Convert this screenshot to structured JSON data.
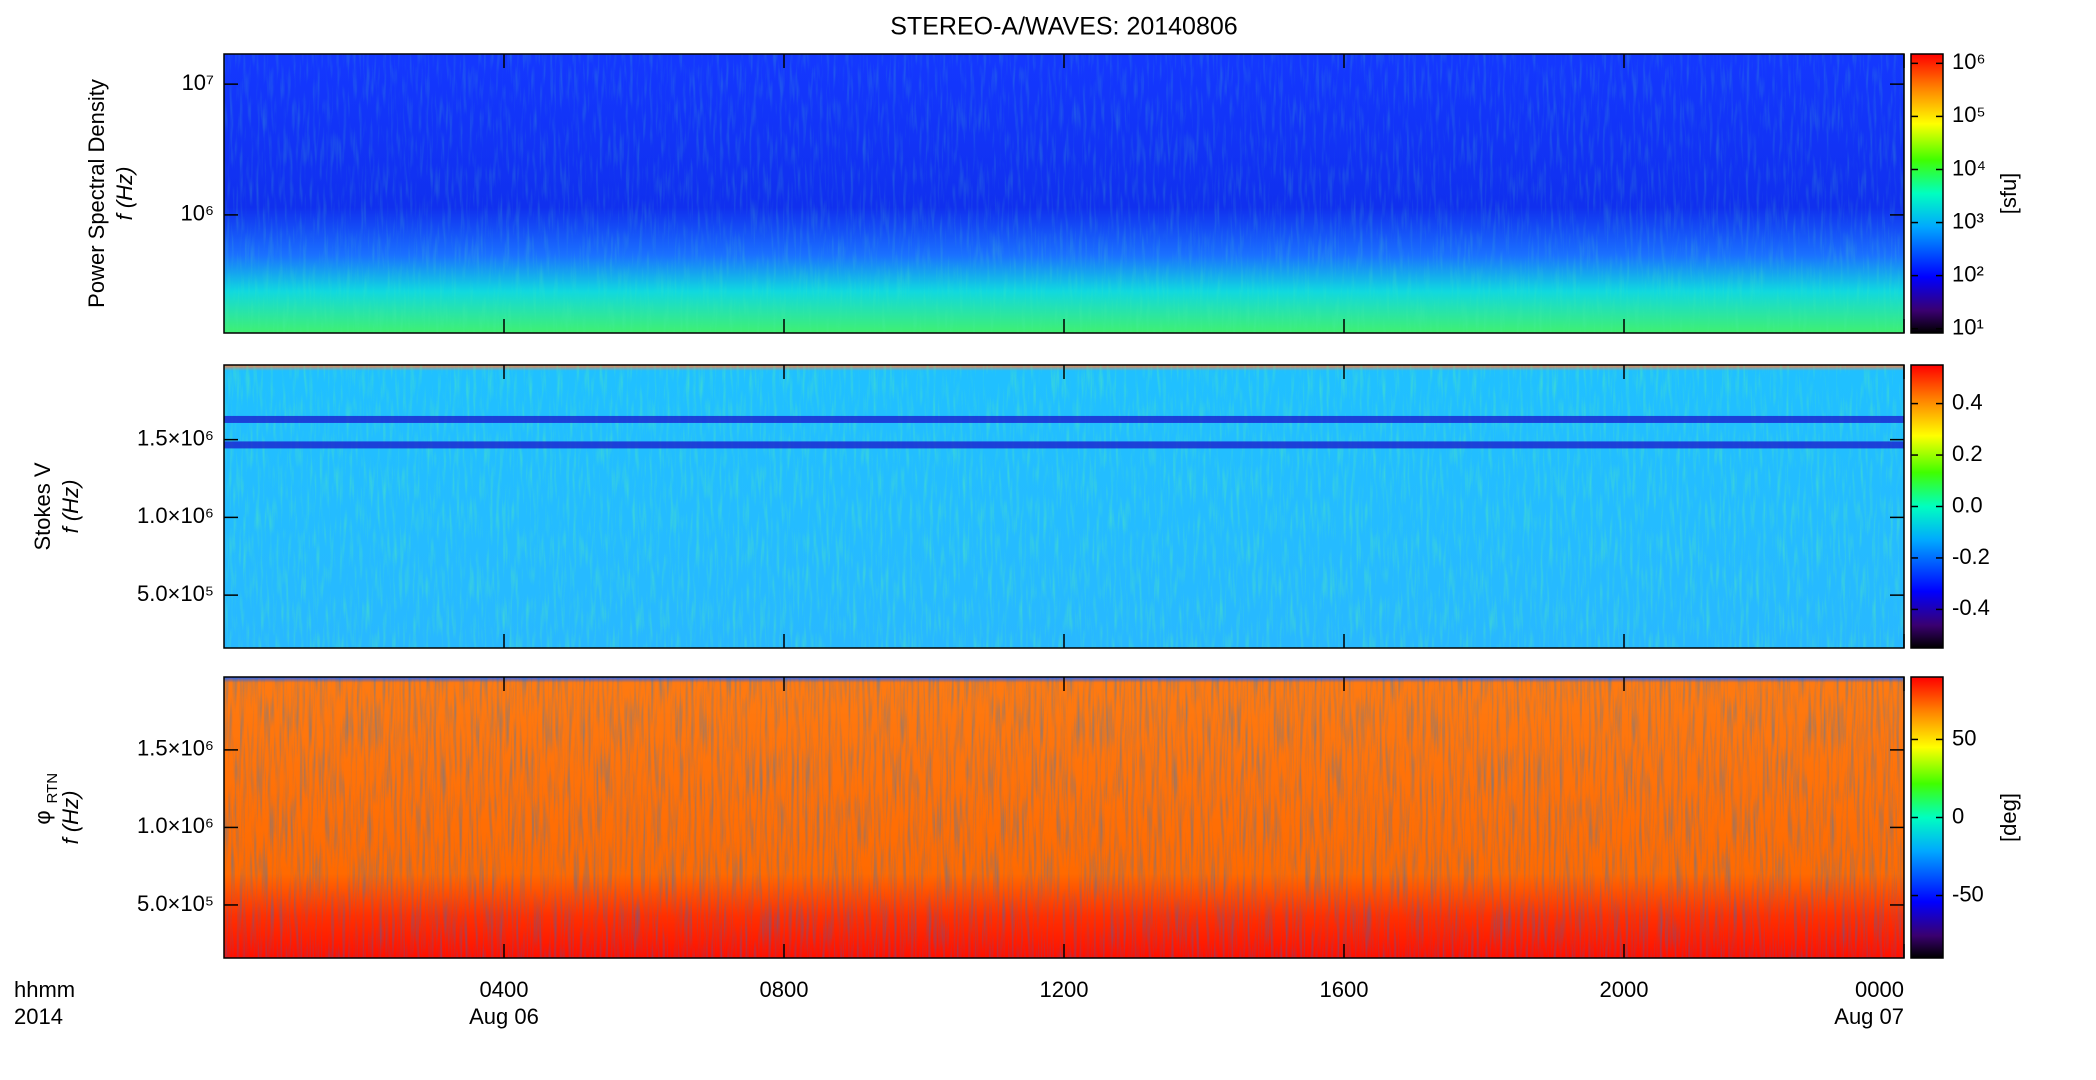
{
  "chart_data": [
    {
      "type": "spectrogram",
      "title": "STEREO-A/WAVES: 20140806",
      "ylabel": "Power Spectral Density",
      "ylabel2": "f (Hz)",
      "ylog": true,
      "ylim": [
        125000,
        17000000
      ],
      "yticks": [
        {
          "value": 1000000,
          "label": "10⁶"
        },
        {
          "value": 10000000,
          "label": "10⁷"
        }
      ],
      "colorbar": {
        "label": "[sfu]",
        "log": true,
        "lim": [
          8.3,
          1500000
        ],
        "ticks": [
          {
            "value": 10,
            "label": "10¹"
          },
          {
            "value": 100,
            "label": "10²"
          },
          {
            "value": 1000,
            "label": "10³"
          },
          {
            "value": 10000,
            "label": "10⁴"
          },
          {
            "value": 100000,
            "label": "10⁵"
          },
          {
            "value": 1000000,
            "label": "10⁶"
          }
        ]
      }
    },
    {
      "type": "spectrogram",
      "ylabel": "Stokes V",
      "ylabel2": "f (Hz)",
      "ylog": false,
      "ylim": [
        160000,
        1980000
      ],
      "yticks": [
        {
          "value": 500000,
          "label": "5.0×10⁵"
        },
        {
          "value": 1000000,
          "label": "1.0×10⁶"
        },
        {
          "value": 1500000,
          "label": "1.5×10⁶"
        }
      ],
      "colorbar": {
        "log": false,
        "lim": [
          -0.55,
          0.55
        ],
        "ticks": [
          -0.4,
          -0.2,
          {
            "value": 0,
            "label": "0.0"
          },
          0.2,
          0.4
        ]
      }
    },
    {
      "type": "spectrogram",
      "ylabel": "φ",
      "ylabel_sub": "RTN",
      "ylabel2": "f (Hz)",
      "ylog": false,
      "ylim": [
        158000,
        1970000
      ],
      "yticks": [
        {
          "value": 500000,
          "label": "5.0×10⁵"
        },
        {
          "value": 1000000,
          "label": "1.0×10⁶"
        },
        {
          "value": 1500000,
          "label": "1.5×10⁶"
        }
      ],
      "colorbar": {
        "label": "[deg]",
        "log": false,
        "lim": [
          -90,
          90
        ],
        "ticks": [
          -50,
          0,
          50
        ]
      },
      "xlabel": "hhmm",
      "xlabel2": "2014",
      "xlim": [
        0,
        24
      ],
      "xticks": [
        {
          "value": 4,
          "label": "0400",
          "date": "Aug 06"
        },
        {
          "value": 8,
          "label": "0800"
        },
        {
          "value": 12,
          "label": "1200"
        },
        {
          "value": 16,
          "label": "1600"
        },
        {
          "value": 20,
          "label": "2000"
        },
        {
          "value": 24,
          "label": "0000",
          "date": "Aug 07"
        }
      ]
    }
  ]
}
